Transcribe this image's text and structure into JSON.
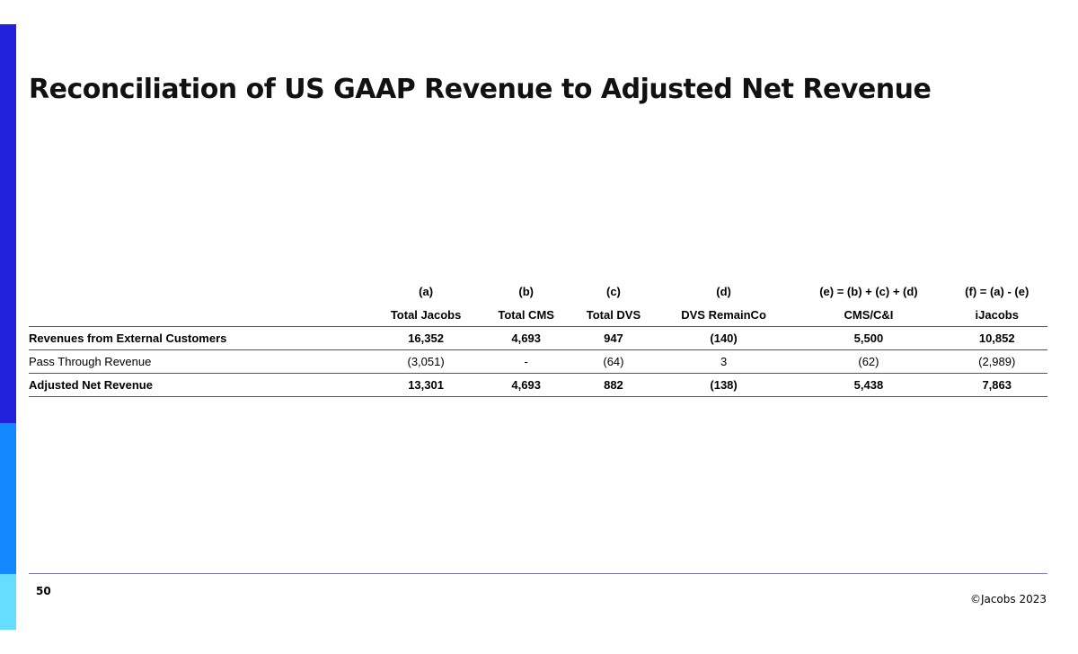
{
  "title": "Reconciliation of US GAAP Revenue to Adjusted Net Revenue",
  "table": {
    "column_keys": [
      "(a)",
      "(b)",
      "(c)",
      "(d)",
      "(e) = (b) + (c) + (d)",
      "(f) = (a) - (e)"
    ],
    "column_headers": [
      "Total Jacobs",
      "Total CMS",
      "Total DVS",
      "DVS RemainCo",
      "CMS/C&I",
      "iJacobs"
    ],
    "rows": [
      {
        "label": "Revenues from External Customers",
        "values": [
          "16,352",
          "4,693",
          "947",
          "(140)",
          "5,500",
          "10,852"
        ]
      },
      {
        "label": "Pass Through Revenue",
        "values": [
          "(3,051)",
          "-",
          "(64)",
          "3",
          "(62)",
          "(2,989)"
        ]
      },
      {
        "label": "Adjusted Net Revenue",
        "values": [
          "13,301",
          "4,693",
          "882",
          "(138)",
          "5,438",
          "7,863"
        ]
      }
    ]
  },
  "footer": {
    "page_number": "50",
    "copyright": "©Jacobs 2023"
  },
  "colors": {
    "accent_dark_blue": "#2222dd",
    "accent_blue": "#1188ff",
    "accent_light_blue": "#66ddff"
  }
}
